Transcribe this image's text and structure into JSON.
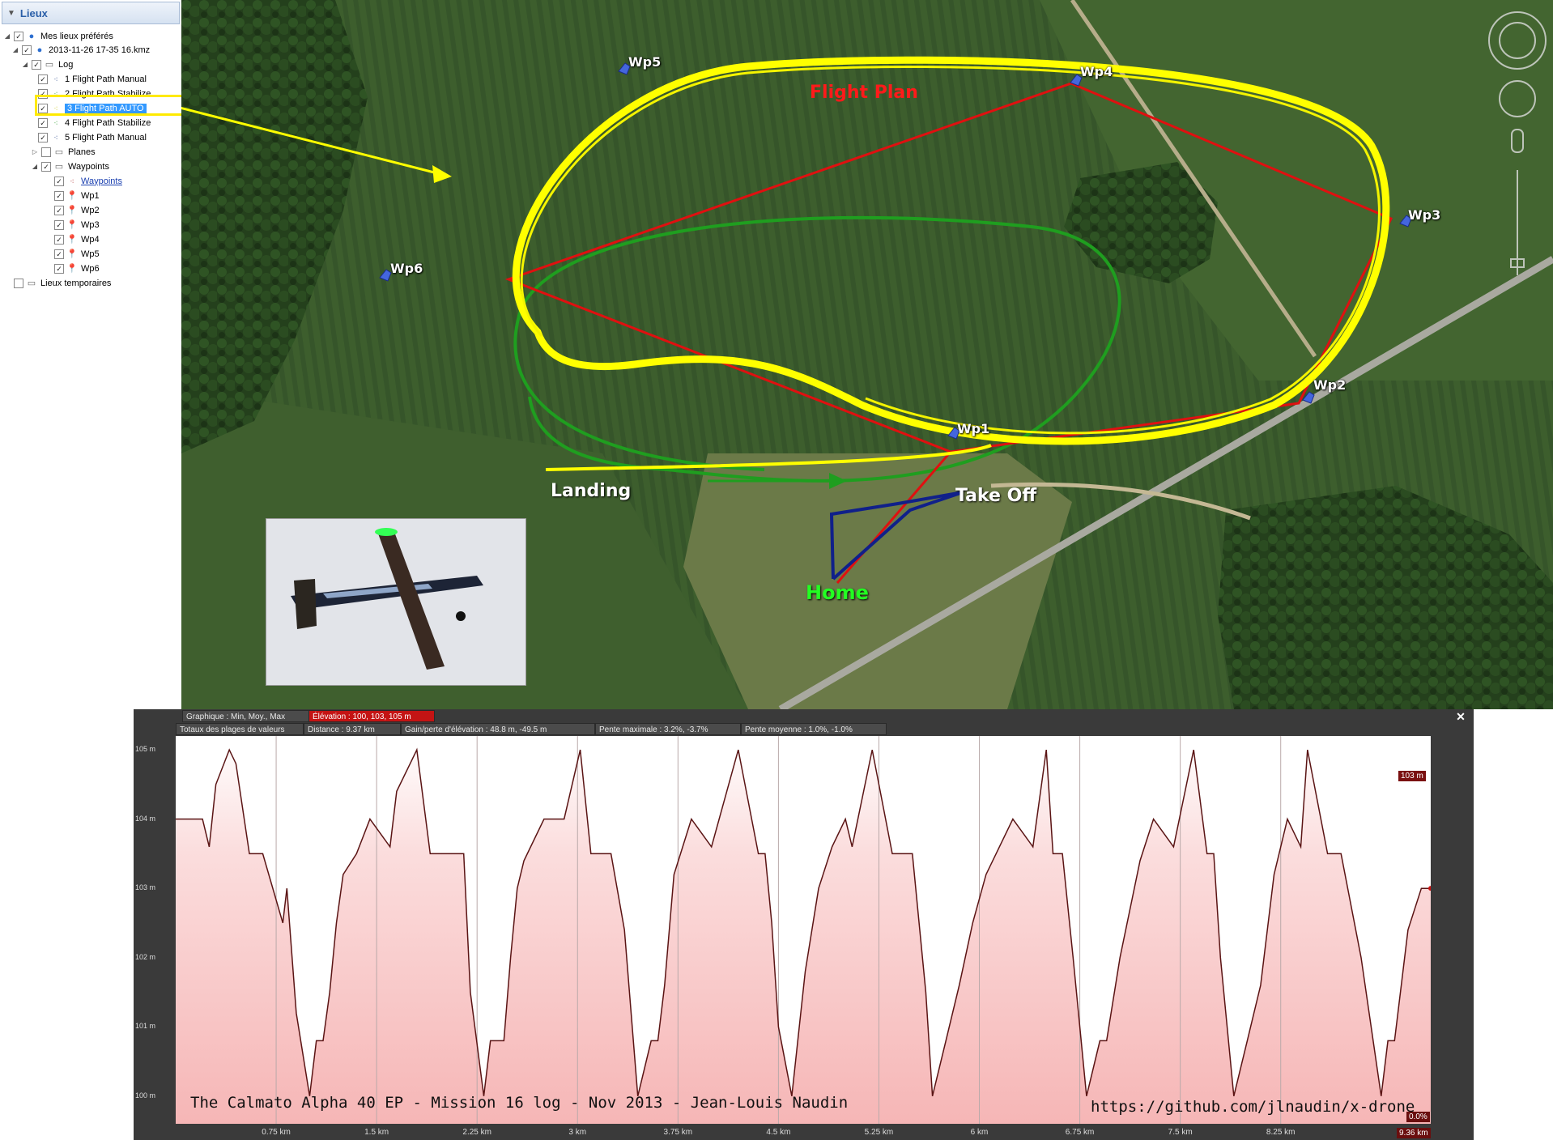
{
  "sidebar": {
    "title": "Lieux",
    "items": [
      {
        "label": "Mes lieux préférés",
        "depth": 0
      },
      {
        "label": "2013-11-26 17-35 16.kmz",
        "depth": 1
      },
      {
        "label": "Log",
        "depth": 2
      },
      {
        "label": "1 Flight Path Manual",
        "depth": 3
      },
      {
        "label": "2 Flight Path Stabilize",
        "depth": 3
      },
      {
        "label": "3 Flight Path AUTO",
        "depth": 3
      },
      {
        "label": "4 Flight Path Stabilize",
        "depth": 3
      },
      {
        "label": "5 Flight Path Manual",
        "depth": 3
      },
      {
        "label": "Planes",
        "depth": 2
      },
      {
        "label": "Waypoints",
        "depth": 2
      },
      {
        "label": "Waypoints",
        "depth": 3
      },
      {
        "label": "Wp1",
        "depth": 3
      },
      {
        "label": "Wp2",
        "depth": 3
      },
      {
        "label": "Wp3",
        "depth": 3
      },
      {
        "label": "Wp4",
        "depth": 3
      },
      {
        "label": "Wp5",
        "depth": 3
      },
      {
        "label": "Wp6",
        "depth": 3
      },
      {
        "label": "Lieux temporaires",
        "depth": 0
      }
    ]
  },
  "map": {
    "waypoints": [
      "Wp1",
      "Wp2",
      "Wp3",
      "Wp4",
      "Wp5",
      "Wp6"
    ],
    "flight_plan_label": "Flight Plan",
    "landing_label": "Landing",
    "takeoff_label": "Take Off",
    "home_label": "Home",
    "colors": {
      "auto_path": "#ffff00",
      "plan": "#e01010",
      "manual_path": "#1f9e1f",
      "ground_track": "#10208a"
    }
  },
  "elevation": {
    "graph_label": "Graphique : Min, Moy., Max",
    "elevation_label": "Élévation : 100, 103, 105 m",
    "totals_label": "Totaux des plages de valeurs",
    "distance_label": "Distance : 9.37 km",
    "gain_label": "Gain/perte d'élévation : 48.8 m, -49.5 m",
    "max_slope_label": "Pente maximale : 3.2%, -3.7%",
    "avg_slope_label": "Pente moyenne : 1.0%, -1.0%",
    "current_value": "103 m",
    "current_slope": "0.0%",
    "current_distance": "9.36 km",
    "caption": "The Calmato Alpha 40 EP - Mission 16 log - Nov 2013 - Jean-Louis Naudin",
    "url": "https://github.com/jlnaudin/x-drone",
    "close_icon": "close-icon"
  },
  "chart_data": {
    "type": "area",
    "xlabel": "",
    "ylabel": "",
    "ylim": [
      99.6,
      105.2
    ],
    "xlim": [
      0,
      9.37
    ],
    "y_ticks": [
      "105 m",
      "104 m",
      "103 m",
      "102 m",
      "101 m",
      "100 m"
    ],
    "y_tick_values": [
      105,
      104,
      103,
      102,
      101,
      100
    ],
    "x_ticks": [
      "0.75 km",
      "1.5 km",
      "2.25 km",
      "3 km",
      "3.75 km",
      "4.5 km",
      "5.25 km",
      "6 km",
      "6.75 km",
      "7.5 km",
      "8.25 km"
    ],
    "x_tick_values": [
      0.75,
      1.5,
      2.25,
      3,
      3.75,
      4.5,
      5.25,
      6,
      6.75,
      7.5,
      8.25
    ],
    "x": [
      0,
      0.2,
      0.25,
      0.3,
      0.4,
      0.45,
      0.55,
      0.65,
      0.8,
      0.83,
      0.9,
      1.0,
      1.05,
      1.1,
      1.15,
      1.2,
      1.25,
      1.35,
      1.45,
      1.6,
      1.65,
      1.8,
      1.9,
      2.15,
      2.2,
      2.3,
      2.35,
      2.45,
      2.5,
      2.55,
      2.6,
      2.75,
      2.9,
      3.02,
      3.1,
      3.25,
      3.35,
      3.45,
      3.55,
      3.6,
      3.65,
      3.72,
      3.85,
      4.0,
      4.2,
      4.35,
      4.4,
      4.45,
      4.5,
      4.6,
      4.7,
      4.8,
      4.9,
      5.0,
      5.05,
      5.2,
      5.35,
      5.5,
      5.6,
      5.65,
      5.75,
      5.85,
      5.95,
      6.05,
      6.25,
      6.4,
      6.5,
      6.55,
      6.62,
      6.7,
      6.8,
      6.9,
      6.95,
      7.05,
      7.2,
      7.3,
      7.45,
      7.6,
      7.7,
      7.75,
      7.8,
      7.9,
      8.0,
      8.1,
      8.2,
      8.3,
      8.4,
      8.45,
      8.6,
      8.7,
      8.85,
      9.0,
      9.05,
      9.1,
      9.2,
      9.3,
      9.37
    ],
    "y": [
      104,
      104,
      103.6,
      104.5,
      105,
      104.8,
      103.5,
      103.5,
      102.5,
      103,
      101.2,
      100,
      100.8,
      100.8,
      101.5,
      102.5,
      103.2,
      103.5,
      104,
      103.6,
      104.4,
      105,
      103.5,
      103.5,
      101.5,
      100,
      100.8,
      100.8,
      102,
      103,
      103.4,
      104,
      104,
      105,
      103.5,
      103.5,
      102.4,
      100,
      100.8,
      100.8,
      101.6,
      103.2,
      104,
      103.6,
      105,
      103.5,
      103.5,
      102.5,
      101,
      100,
      101.8,
      103,
      103.6,
      104,
      103.6,
      105,
      103.5,
      103.5,
      101.5,
      100,
      100.8,
      101.6,
      102.5,
      103.2,
      104,
      103.6,
      105,
      103.5,
      103.5,
      102,
      100,
      100.8,
      100.8,
      102,
      103.4,
      104,
      103.6,
      105,
      103.5,
      103.5,
      102,
      100,
      100.8,
      101.6,
      103.2,
      104,
      103.6,
      105,
      103.5,
      103.5,
      102,
      100,
      100.8,
      100.8,
      102.4,
      103,
      103
    ]
  }
}
